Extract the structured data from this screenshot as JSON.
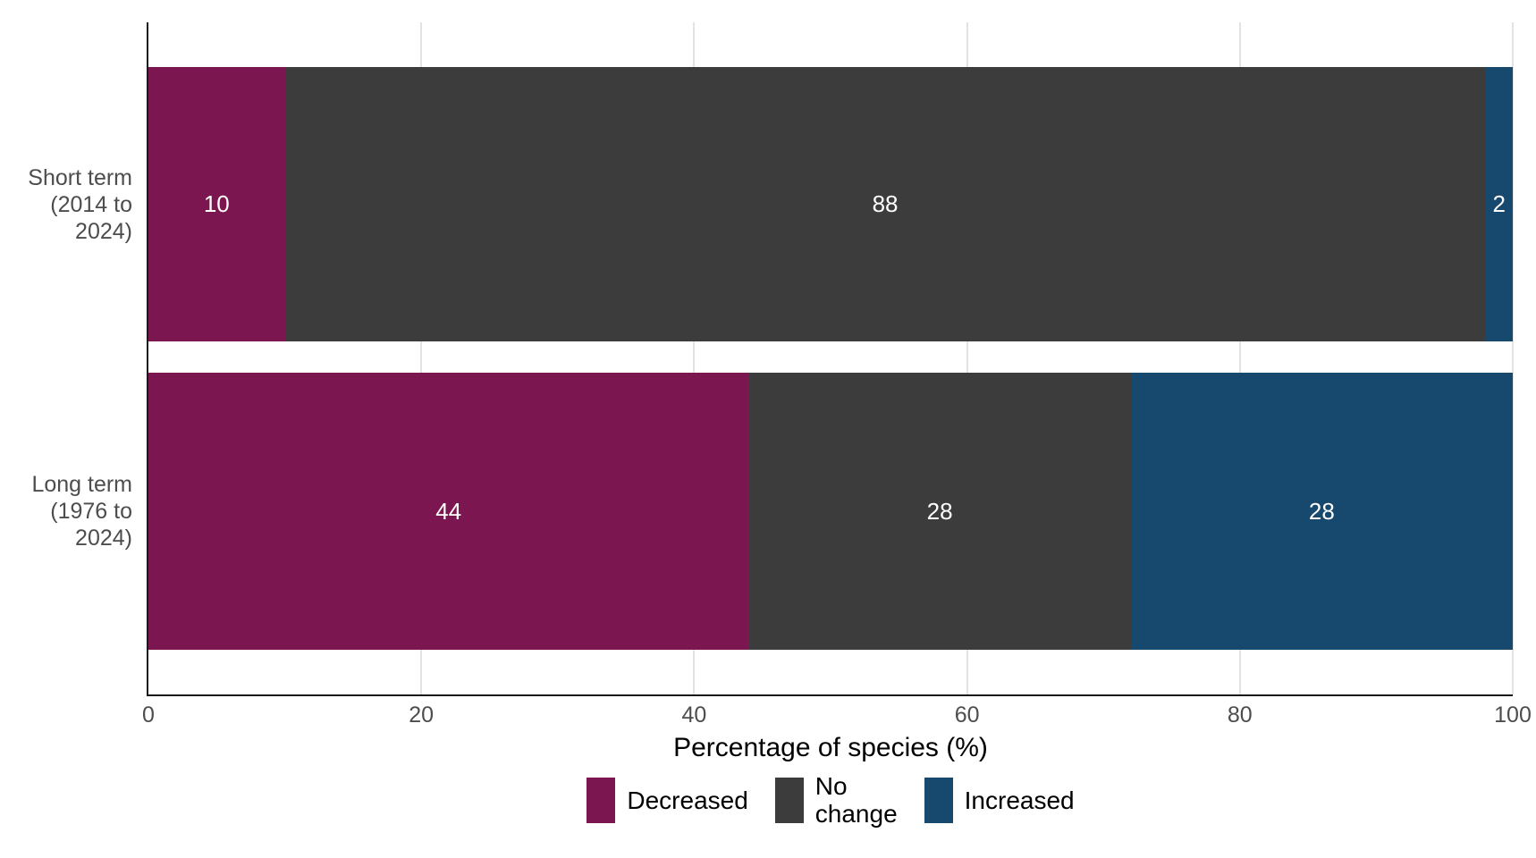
{
  "chart_data": {
    "type": "bar",
    "orientation": "horizontal",
    "stacked": true,
    "title": "",
    "xlabel": "Percentage of species (%)",
    "ylabel": "",
    "xlim": [
      0,
      100
    ],
    "xticks": [
      0,
      20,
      40,
      60,
      80,
      100
    ],
    "grid": "vertical major gridlines",
    "legend_position": "bottom-center",
    "categories": [
      {
        "id": "short-term",
        "label_lines": [
          "Short term",
          "(2014 to",
          "2024)"
        ]
      },
      {
        "id": "long-term",
        "label_lines": [
          "Long term",
          "(1976 to",
          "2024)"
        ]
      }
    ],
    "series": [
      {
        "name": "Decreased",
        "color": "#7C1650",
        "values": [
          10,
          44
        ],
        "legend_label_lines": [
          "Decreased"
        ]
      },
      {
        "name": "No change",
        "color": "#3C3C3C",
        "values": [
          88,
          28
        ],
        "legend_label_lines": [
          "No",
          "change"
        ]
      },
      {
        "name": "Increased",
        "color": "#17486D",
        "values": [
          2,
          28
        ],
        "legend_label_lines": [
          "Increased"
        ]
      }
    ],
    "bar_value_label_color": "#FFFFFF",
    "style": {
      "axis_line_color": "#1A1A1A",
      "grid_color": "#E3E3E3",
      "tick_label_color": "#4D4D4D",
      "category_label_color": "#4D4D4D",
      "axis_title_color": "#000000",
      "legend_text_color": "#000000",
      "background": "#FFFFFF"
    }
  }
}
